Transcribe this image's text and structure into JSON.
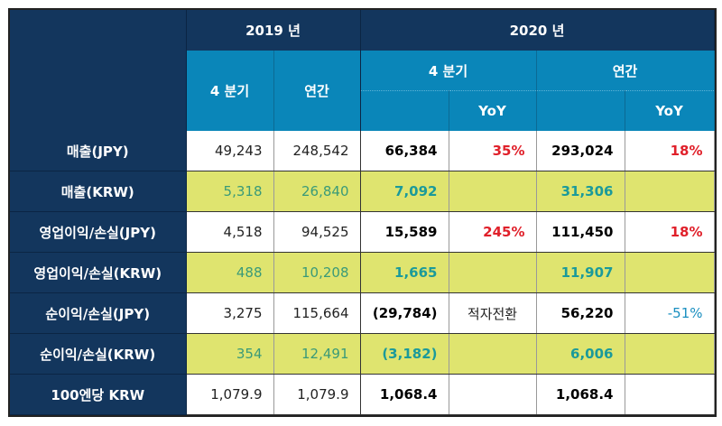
{
  "header": {
    "year_2019": "2019 년",
    "year_2020": "2020 년",
    "q4": "4 분기",
    "annual": "연간",
    "yoy": "YoY"
  },
  "colors": {
    "header_navy": "#13365d",
    "header_blue": "#0a86b9",
    "highlight_row": "#dfe46f",
    "positive": "#e0202a",
    "negative": "#1a8fc0"
  },
  "rows": [
    {
      "label": "매출(JPY)",
      "q4_2019": "49,243",
      "annual_2019": "248,542",
      "q4_2020": "66,384",
      "q4_yoy": "35%",
      "annual_2020": "293,024",
      "annual_yoy": "18%",
      "q4_yoy_color": "#e0202a",
      "annual_yoy_color": "#e0202a",
      "highlight": false
    },
    {
      "label": "매출(KRW)",
      "q4_2019": "5,318",
      "annual_2019": "26,840",
      "q4_2020": "7,092",
      "q4_yoy": "",
      "annual_2020": "31,306",
      "annual_yoy": "",
      "highlight": true
    },
    {
      "label": "영업이익/손실(JPY)",
      "q4_2019": "4,518",
      "annual_2019": "94,525",
      "q4_2020": "15,589",
      "q4_yoy": "245%",
      "annual_2020": "111,450",
      "annual_yoy": "18%",
      "q4_yoy_color": "#e0202a",
      "annual_yoy_color": "#e0202a",
      "highlight": false
    },
    {
      "label": "영업이익/손실(KRW)",
      "q4_2019": "488",
      "annual_2019": "10,208",
      "q4_2020": "1,665",
      "q4_yoy": "",
      "annual_2020": "11,907",
      "annual_yoy": "",
      "highlight": true
    },
    {
      "label": "순이익/손실(JPY)",
      "q4_2019": "3,275",
      "annual_2019": "115,664",
      "q4_2020": "(29,784)",
      "q4_yoy": "적자전환",
      "annual_2020": "56,220",
      "annual_yoy": "-51%",
      "q4_yoy_color": "#222222",
      "annual_yoy_color": "#1a8fc0",
      "highlight": false
    },
    {
      "label": "순이익/손실(KRW)",
      "q4_2019": "354",
      "annual_2019": "12,491",
      "q4_2020": "(3,182)",
      "q4_yoy": "",
      "annual_2020": "6,006",
      "annual_yoy": "",
      "highlight": true
    },
    {
      "label": "100엔당 KRW",
      "q4_2019": "1,079.9",
      "annual_2019": "1,079.9",
      "q4_2020": "1,068.4",
      "q4_yoy": "",
      "annual_2020": "1,068.4",
      "annual_yoy": "",
      "highlight": false
    }
  ]
}
